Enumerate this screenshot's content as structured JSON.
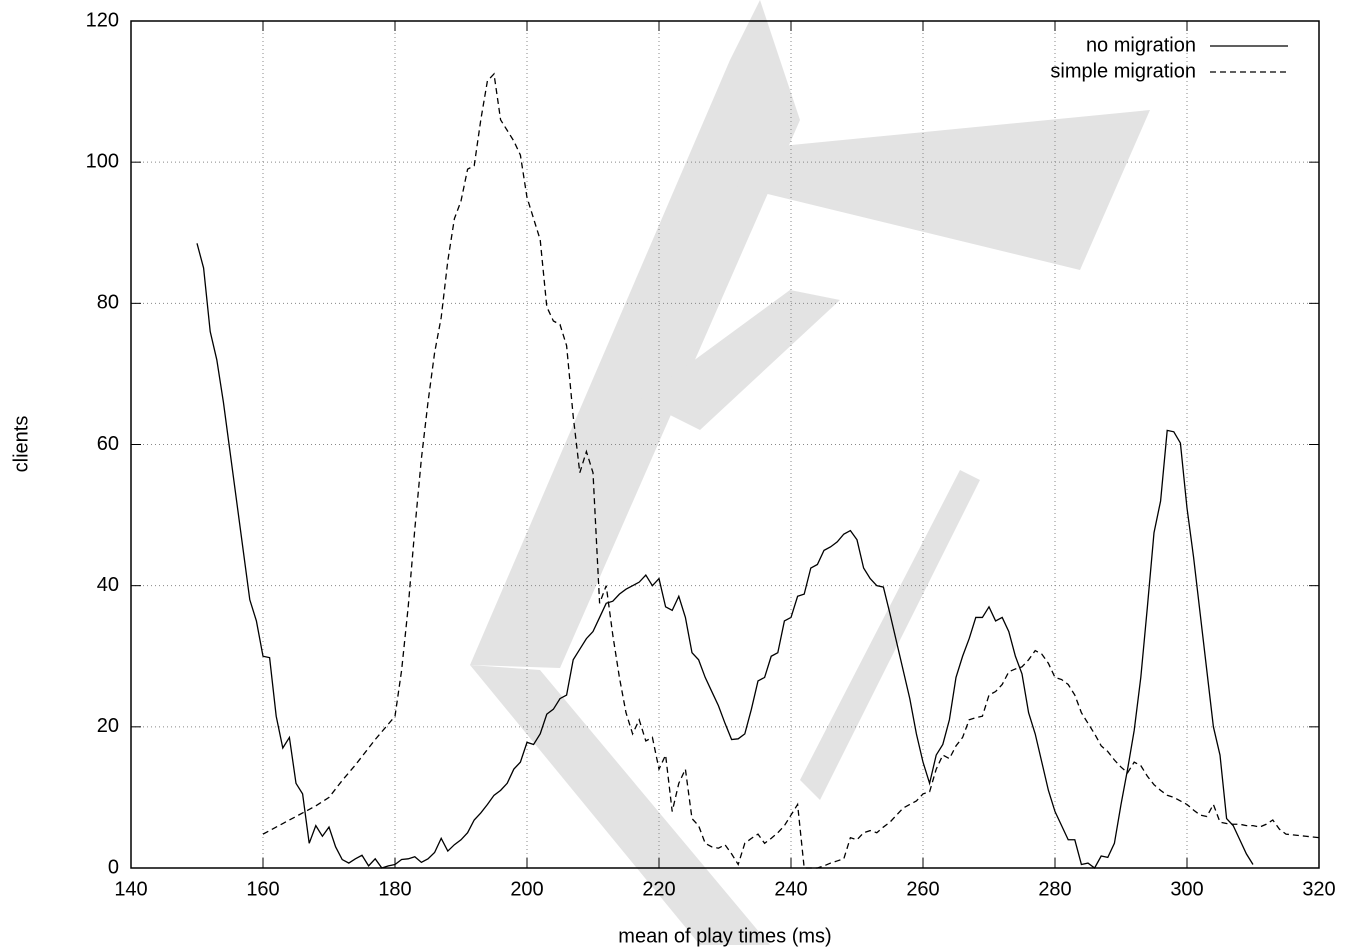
{
  "chart_data": {
    "type": "line",
    "x_label": "mean of play times (ms)",
    "y_label": "clients",
    "xlim": [
      140,
      320
    ],
    "ylim": [
      0,
      120
    ],
    "xticks": [
      140,
      160,
      180,
      200,
      220,
      240,
      260,
      280,
      300,
      320
    ],
    "yticks": [
      0,
      20,
      40,
      60,
      80,
      100,
      120
    ],
    "grid": true,
    "legend": "top-right",
    "x": [
      150,
      151,
      152,
      153,
      154,
      155,
      156,
      157,
      158,
      159,
      160,
      161,
      162,
      163,
      164,
      165,
      166,
      167,
      168,
      169,
      170,
      171,
      172,
      173,
      174,
      175,
      176,
      177,
      178,
      179,
      180,
      181,
      182,
      183,
      184,
      185,
      186,
      187,
      188,
      189,
      190,
      191,
      192,
      193,
      194,
      195,
      196,
      197,
      198,
      199,
      200,
      201,
      202,
      203,
      204,
      205,
      206,
      207,
      208,
      209,
      210,
      211,
      212,
      213,
      214,
      215,
      216,
      217,
      218,
      219,
      220,
      221,
      222,
      223,
      224,
      225,
      226,
      227,
      228,
      229,
      230,
      231,
      232,
      233,
      234,
      235,
      236,
      237,
      238,
      239,
      240,
      241,
      242,
      243,
      244,
      245,
      246,
      247,
      248,
      249,
      250,
      251,
      252,
      253,
      254,
      255,
      256,
      257,
      258,
      259,
      260,
      261,
      262,
      263,
      264,
      265,
      266,
      267,
      268,
      269,
      270,
      271,
      272,
      273,
      274,
      275,
      276,
      277,
      278,
      279,
      280,
      281,
      282,
      283,
      284,
      285,
      286,
      287,
      288,
      289,
      290,
      291,
      292,
      293,
      294,
      295,
      296,
      297,
      298,
      299,
      300,
      301,
      302,
      303,
      304,
      305,
      306,
      307,
      308,
      309,
      310,
      311,
      312,
      313,
      314,
      315,
      316,
      317,
      318,
      319,
      320
    ],
    "series": [
      {
        "name": "no migration",
        "color": "#000000",
        "dash": "solid",
        "values": [
          88.5,
          85,
          76,
          72,
          66,
          59,
          52,
          45,
          38,
          35,
          30,
          29.8,
          21.5,
          17,
          18.5,
          12,
          10.5,
          3.5,
          6,
          4.5,
          5.8,
          3,
          1.2,
          0.7,
          1.3,
          1.8,
          0.3,
          1.3,
          0,
          0.3,
          0.5,
          1.2,
          1.3,
          1.6,
          0.8,
          1.3,
          2.2,
          4.2,
          2.4,
          3.3,
          4,
          5,
          6.8,
          7.8,
          9,
          10.3,
          11,
          12,
          14,
          15,
          17.8,
          17.5,
          19,
          21.8,
          22.5,
          24,
          24.5,
          29.5,
          31,
          32.5,
          33.5,
          35.5,
          37.5,
          37.8,
          38.8,
          39.5,
          40,
          40.5,
          41.5,
          40,
          41,
          37,
          36.5,
          38.5,
          35.5,
          30.5,
          29.5,
          27,
          25,
          23,
          20.5,
          18.2,
          18.3,
          19,
          22.5,
          26.5,
          27,
          30,
          30.5,
          35,
          35.5,
          38.5,
          38.8,
          42.5,
          43,
          45,
          45.5,
          46.2,
          47.3,
          47.8,
          46.5,
          42.5,
          41,
          40,
          39.8,
          36,
          32,
          28,
          24,
          19,
          15,
          12,
          16,
          17.5,
          21,
          27,
          30,
          32.5,
          35.5,
          35.5,
          37,
          35,
          35.5,
          33.5,
          30,
          27.5,
          22,
          19,
          15,
          11,
          8,
          6,
          4,
          4,
          0.5,
          0.7,
          0,
          1.7,
          1.5,
          3.5,
          9,
          14,
          19.5,
          27,
          37,
          47.5,
          52,
          62,
          61.8,
          60.2,
          51,
          44,
          36,
          28,
          20,
          16,
          7,
          6,
          4,
          2,
          0.5,
          null,
          null,
          null,
          null,
          null,
          null,
          null,
          null,
          null,
          null
        ]
      },
      {
        "name": "simple migration",
        "color": "#000000",
        "dash": "dashed",
        "values": [
          null,
          null,
          null,
          null,
          null,
          null,
          null,
          null,
          null,
          null,
          4.8,
          5.3,
          5.8,
          6.3,
          6.8,
          7.3,
          7.8,
          8.3,
          8.8,
          9.4,
          10,
          11.2,
          12.4,
          13.5,
          14.6,
          15.8,
          17,
          18.2,
          19.3,
          20.4,
          21.5,
          28,
          37,
          48,
          58,
          66,
          73,
          78,
          86,
          92,
          94.5,
          99,
          99.5,
          106,
          111.5,
          112.5,
          106,
          104.5,
          103,
          101,
          95,
          92,
          89,
          79.5,
          77.5,
          77,
          74,
          64,
          56,
          59,
          56,
          37.5,
          40,
          33,
          27,
          22,
          19,
          21,
          18,
          18.5,
          14,
          16,
          8,
          12,
          14,
          7,
          6,
          3.5,
          3,
          2.8,
          3.3,
          2,
          0.5,
          3.5,
          4.2,
          4.8,
          3.5,
          4.2,
          5,
          6,
          7.5,
          9,
          0,
          0,
          0,
          0.3,
          0.7,
          1,
          1.3,
          4.3,
          4,
          5,
          5.3,
          5,
          5.8,
          6.5,
          7.5,
          8.5,
          9,
          9.5,
          10.5,
          10.8,
          14,
          16,
          15.5,
          17.3,
          18.5,
          21,
          21.3,
          21.5,
          24.5,
          25,
          26,
          27.8,
          28.2,
          28.5,
          29.5,
          30.8,
          30.3,
          29,
          27,
          26.7,
          26,
          24.5,
          22,
          20.5,
          19,
          17.3,
          16.5,
          15.3,
          14.3,
          13.5,
          15,
          14.5,
          13,
          11.8,
          11,
          10.3,
          10,
          9.5,
          9,
          8.2,
          7.5,
          7.3,
          9,
          6.5,
          6.3,
          6.2,
          6.2,
          6,
          6,
          5.8,
          6.2,
          6.8,
          5.5,
          4.8,
          4.7,
          4.6,
          4.5,
          4.4,
          4.3
        ]
      }
    ]
  }
}
